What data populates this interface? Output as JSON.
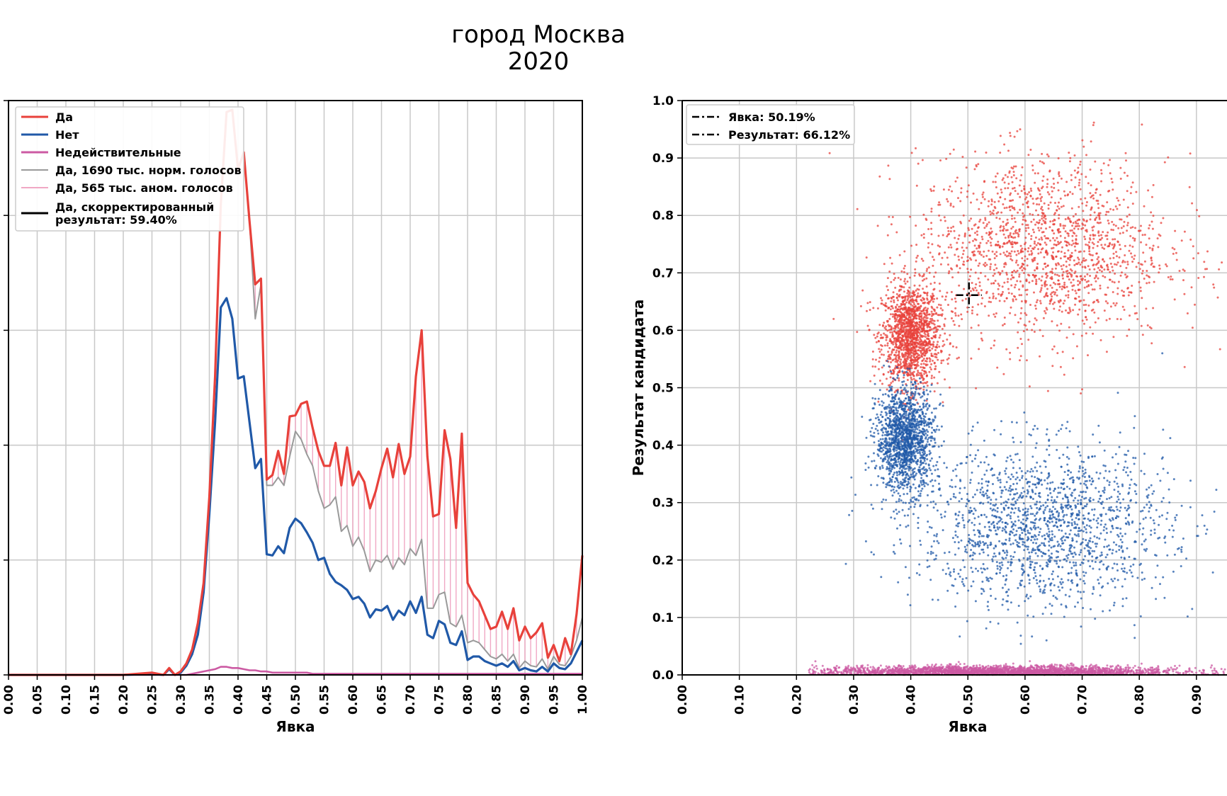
{
  "title": {
    "line1": "город Москва",
    "line2": "2020"
  },
  "chart_data": [
    {
      "type": "line",
      "xlabel": "Явка",
      "ylabel": "",
      "xlim": [
        0.0,
        1.0
      ],
      "ylim": [
        0.0,
        500
      ],
      "grid": true,
      "legend_position": "top-left",
      "x_tick_labels": [
        "0.00",
        "0.05",
        "0.10",
        "0.15",
        "0.20",
        "0.25",
        "0.30",
        "0.35",
        "0.40",
        "0.45",
        "0.50",
        "0.55",
        "0.60",
        "0.65",
        "0.70",
        "0.75",
        "0.80",
        "0.85",
        "0.90",
        "0.95",
        "1.00"
      ],
      "x": [
        0.0,
        0.05,
        0.1,
        0.15,
        0.2,
        0.25,
        0.27,
        0.28,
        0.29,
        0.3,
        0.31,
        0.32,
        0.33,
        0.34,
        0.35,
        0.36,
        0.37,
        0.38,
        0.39,
        0.4,
        0.41,
        0.42,
        0.43,
        0.44,
        0.45,
        0.46,
        0.47,
        0.48,
        0.49,
        0.5,
        0.51,
        0.52,
        0.53,
        0.54,
        0.55,
        0.56,
        0.57,
        0.58,
        0.59,
        0.6,
        0.61,
        0.62,
        0.63,
        0.64,
        0.65,
        0.66,
        0.67,
        0.68,
        0.69,
        0.7,
        0.71,
        0.72,
        0.73,
        0.74,
        0.75,
        0.76,
        0.77,
        0.78,
        0.79,
        0.8,
        0.81,
        0.82,
        0.83,
        0.84,
        0.85,
        0.86,
        0.87,
        0.88,
        0.89,
        0.9,
        0.91,
        0.92,
        0.93,
        0.94,
        0.95,
        0.96,
        0.97,
        0.98,
        0.99,
        1.0
      ],
      "series": [
        {
          "name": "Да",
          "color": "#e8413b",
          "values": [
            0,
            0,
            0,
            0,
            0,
            2,
            0,
            6,
            0,
            3,
            10,
            22,
            45,
            80,
            155,
            260,
            410,
            490,
            492,
            440,
            455,
            395,
            340,
            345,
            170,
            174,
            195,
            175,
            225,
            226,
            236,
            238,
            215,
            195,
            182,
            182,
            202,
            165,
            198,
            165,
            177,
            168,
            145,
            160,
            180,
            197,
            172,
            201,
            175,
            190,
            260,
            300,
            190,
            138,
            140,
            213,
            188,
            128,
            210,
            80,
            70,
            64,
            52,
            40,
            42,
            55,
            40,
            58,
            30,
            42,
            32,
            37,
            45,
            15,
            26,
            12,
            32,
            18,
            53,
            104
          ]
        },
        {
          "name": "Нет",
          "color": "#2059a8",
          "values": [
            0,
            0,
            0,
            0,
            0,
            1,
            0,
            5,
            0,
            2,
            8,
            18,
            35,
            72,
            140,
            220,
            320,
            328,
            310,
            258,
            260,
            220,
            180,
            188,
            105,
            104,
            112,
            106,
            128,
            136,
            132,
            124,
            115,
            100,
            102,
            88,
            81,
            78,
            74,
            66,
            68,
            62,
            50,
            57,
            56,
            60,
            48,
            56,
            52,
            64,
            54,
            68,
            35,
            32,
            47,
            44,
            28,
            26,
            38,
            13,
            16,
            16,
            12,
            10,
            8,
            10,
            7,
            12,
            4,
            6,
            4,
            3,
            7,
            3,
            10,
            6,
            5,
            10,
            20,
            30
          ]
        },
        {
          "name": "Недействительные",
          "color": "#cc5aa3",
          "values": [
            0,
            0,
            0,
            0,
            0,
            0,
            0,
            0,
            0,
            0,
            0,
            1,
            2,
            3,
            4,
            5,
            7,
            7,
            6,
            6,
            5,
            4,
            4,
            3,
            3,
            2,
            2,
            2,
            2,
            2,
            2,
            2,
            1,
            1,
            1,
            1,
            1,
            1,
            1,
            1,
            1,
            1,
            1,
            1,
            1,
            1,
            1,
            1,
            1,
            1,
            1,
            1,
            1,
            1,
            1,
            1,
            1,
            1,
            1,
            1,
            1,
            1,
            1,
            1,
            1,
            1,
            1,
            1,
            1,
            1,
            1,
            1,
            1,
            1,
            1,
            1,
            1,
            1,
            1,
            1
          ]
        },
        {
          "name": "Да, 1690 тыс. норм. голосов",
          "color": "#9a9a9a",
          "values": [
            0,
            0,
            0,
            0,
            0,
            2,
            0,
            6,
            0,
            3,
            10,
            22,
            45,
            80,
            155,
            260,
            410,
            490,
            492,
            440,
            455,
            395,
            310,
            340,
            165,
            165,
            172,
            165,
            190,
            212,
            205,
            192,
            182,
            160,
            145,
            148,
            155,
            125,
            130,
            112,
            120,
            108,
            90,
            100,
            98,
            104,
            92,
            102,
            96,
            110,
            104,
            118,
            58,
            58,
            70,
            72,
            45,
            42,
            52,
            28,
            30,
            28,
            22,
            16,
            14,
            18,
            12,
            18,
            6,
            12,
            8,
            7,
            14,
            5,
            16,
            9,
            8,
            16,
            30,
            50
          ]
        }
      ],
      "anomaly_series": {
        "name": "Да, 565 тыс. аном. голосов",
        "color": "#f0a8c4"
      },
      "corrected_result": {
        "name": "Да, скорректированный результат: 59.40%",
        "color": "#000000"
      }
    },
    {
      "type": "scatter",
      "xlabel": "Явка",
      "ylabel": "Результат кандидата",
      "xlim": [
        0.0,
        1.0
      ],
      "ylim": [
        0.0,
        1.0
      ],
      "grid": true,
      "legend_position": "top-left",
      "x_tick_labels": [
        "0.00",
        "0.10",
        "0.20",
        "0.30",
        "0.40",
        "0.50",
        "0.60",
        "0.70",
        "0.80",
        "0.90"
      ],
      "y_tick_labels": [
        "0.0",
        "0.1",
        "0.2",
        "0.3",
        "0.4",
        "0.5",
        "0.6",
        "0.7",
        "0.8",
        "0.9",
        "1.0"
      ],
      "turnout_marker": {
        "label": "Явка: 50.19%",
        "x": 0.5019
      },
      "result_marker": {
        "label": "Результат: 66.12%",
        "y": 0.6612
      },
      "clusters": [
        {
          "series": "Да",
          "color": "#e8413b",
          "points": 1500,
          "cx": 0.4,
          "cy": 0.59,
          "sx": 0.025,
          "sy": 0.045
        },
        {
          "series": "Да",
          "color": "#e8413b",
          "points": 1700,
          "cx": 0.63,
          "cy": 0.74,
          "sx": 0.11,
          "sy": 0.08
        },
        {
          "series": "Нет",
          "color": "#2059a8",
          "points": 1500,
          "cx": 0.39,
          "cy": 0.41,
          "sx": 0.025,
          "sy": 0.045
        },
        {
          "series": "Нет",
          "color": "#2059a8",
          "points": 1700,
          "cx": 0.63,
          "cy": 0.26,
          "sx": 0.11,
          "sy": 0.07
        },
        {
          "series": "Недействительные",
          "color": "#cc5aa3",
          "points": 2600,
          "cx": 0.55,
          "cy": 0.006,
          "sx": 0.16,
          "sy": 0.005
        }
      ]
    }
  ]
}
